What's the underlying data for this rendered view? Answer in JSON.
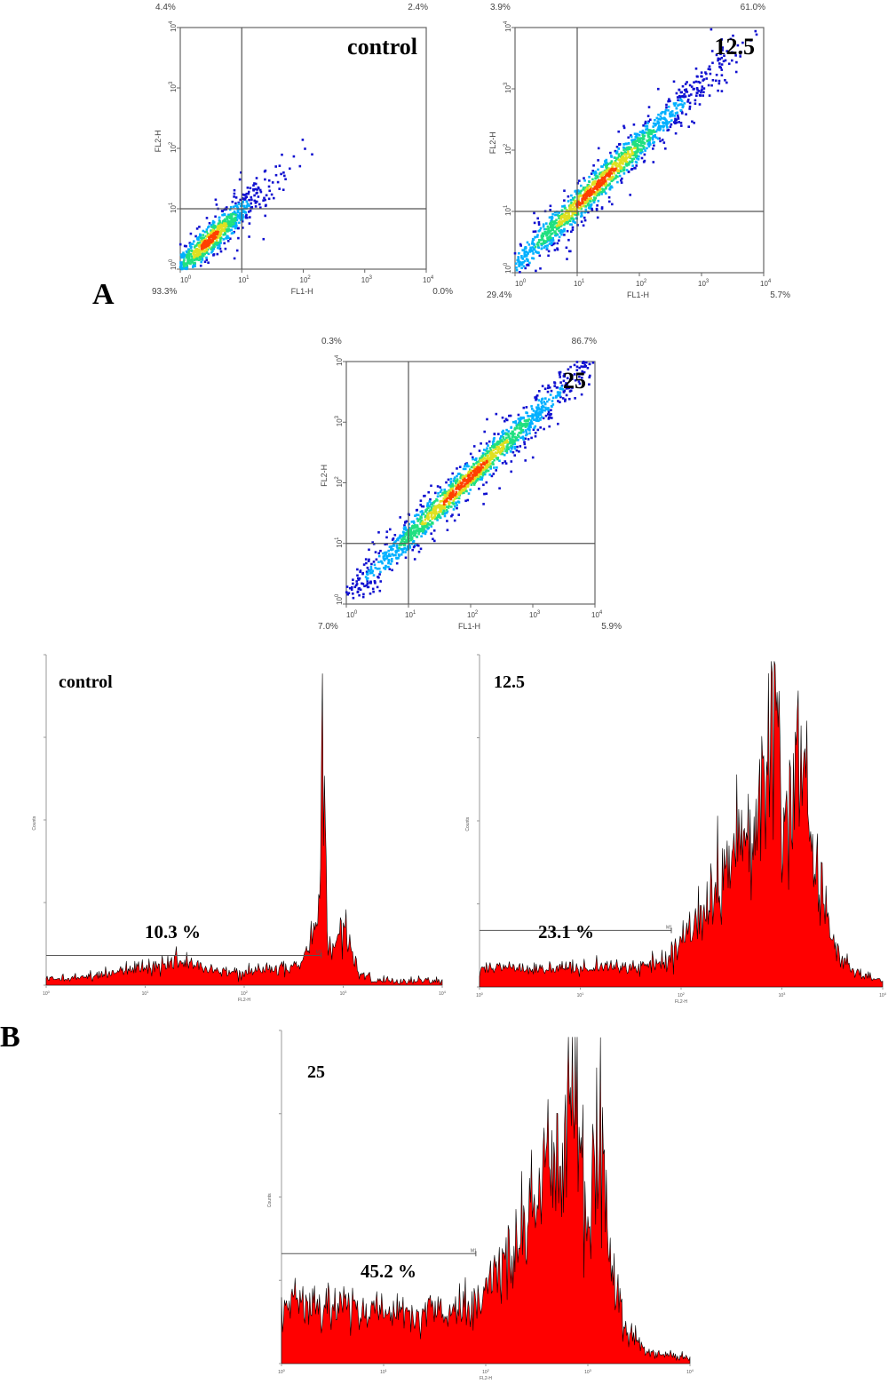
{
  "panels": {
    "A": "A",
    "B": "B"
  },
  "colors": {
    "histogram_fill": "#ff0000",
    "histogram_edge": "#000000",
    "density": [
      "#1010d0",
      "#00b0ff",
      "#20e080",
      "#e0e020",
      "#ff4000"
    ]
  },
  "chart_data": [
    {
      "type": "scatter",
      "title": "control",
      "xlabel": "FL1-H",
      "ylabel": "FL2-H",
      "scale": "log",
      "xlim": [
        1,
        10000
      ],
      "ylim": [
        1,
        10000
      ],
      "tick_exponents": [
        "0",
        "1",
        "2",
        "3",
        "4"
      ],
      "gate": {
        "x": 10,
        "y": 10
      },
      "quadrant_percentages": {
        "upper_left": "4.4%",
        "upper_right": "2.4%",
        "lower_left": "93.3%",
        "lower_right": "0.0%"
      },
      "population": {
        "center": [
          3,
          3
        ],
        "spread": 0.22,
        "slope": 1.0,
        "points": 900
      }
    },
    {
      "type": "scatter",
      "title": "12.5",
      "xlabel": "FL1-H",
      "ylabel": "FL2-H",
      "scale": "log",
      "xlim": [
        1,
        10000
      ],
      "ylim": [
        1,
        10000
      ],
      "tick_exponents": [
        "0",
        "1",
        "2",
        "3",
        "4"
      ],
      "gate": {
        "x": 10,
        "y": 10
      },
      "quadrant_percentages": {
        "upper_left": "3.9%",
        "upper_right": "61.0%",
        "lower_left": "29.4%",
        "lower_right": "5.7%"
      },
      "population": {
        "center": [
          20,
          25
        ],
        "spread": 0.5,
        "slope": 1.0,
        "points": 1600
      }
    },
    {
      "type": "scatter",
      "title": "25",
      "xlabel": "FL1-H",
      "ylabel": "FL2-H",
      "scale": "log",
      "xlim": [
        1,
        10000
      ],
      "ylim": [
        1,
        10000
      ],
      "tick_exponents": [
        "0",
        "1",
        "2",
        "3",
        "4"
      ],
      "gate": {
        "x": 10,
        "y": 10
      },
      "quadrant_percentages": {
        "upper_left": "0.3%",
        "upper_right": "86.7%",
        "lower_left": "7.0%",
        "lower_right": "5.9%"
      },
      "population": {
        "center": [
          80,
          100
        ],
        "spread": 0.55,
        "slope": 1.0,
        "points": 1700
      }
    },
    {
      "type": "area",
      "title": "control",
      "xlabel": "FL2-H",
      "ylabel": "Counts",
      "scale": "log",
      "xlim": [
        1,
        10000
      ],
      "annotation": "10.3 %",
      "marker_label": "M1",
      "marker_range": [
        1,
        600
      ],
      "marker_level": 0.09,
      "tick_exponents": [
        "0",
        "1",
        "2",
        "3",
        "4"
      ],
      "x": [
        1,
        3,
        10,
        30,
        60,
        100,
        200,
        400,
        560,
        620,
        700,
        820,
        1000,
        1400,
        2000,
        5000,
        10000
      ],
      "values": [
        0.01,
        0.02,
        0.05,
        0.06,
        0.03,
        0.03,
        0.04,
        0.06,
        0.2,
        0.98,
        0.12,
        0.11,
        0.2,
        0.03,
        0.005,
        0.003,
        0.003
      ]
    },
    {
      "type": "area",
      "title": "12.5",
      "xlabel": "FL2-H",
      "ylabel": "Counts",
      "scale": "log",
      "xlim": [
        1,
        10000
      ],
      "annotation": "23.1 %",
      "marker_label": "M1",
      "marker_range": [
        1,
        80
      ],
      "marker_level": 0.17,
      "tick_exponents": [
        "0",
        "1",
        "2",
        "3",
        "4"
      ],
      "x": [
        1,
        10,
        40,
        80,
        150,
        300,
        500,
        700,
        850,
        1000,
        1200,
        1600,
        2000,
        3000,
        5000,
        10000
      ],
      "values": [
        0.05,
        0.05,
        0.05,
        0.08,
        0.22,
        0.38,
        0.5,
        0.62,
        0.98,
        0.52,
        0.48,
        0.76,
        0.42,
        0.15,
        0.04,
        0.01
      ]
    },
    {
      "type": "area",
      "title": "25",
      "xlabel": "FL2-H",
      "ylabel": "Counts",
      "scale": "log",
      "xlim": [
        1,
        10000
      ],
      "annotation": "45.2 %",
      "marker_label": "M1",
      "marker_range": [
        1,
        80
      ],
      "marker_level": 0.33,
      "tick_exponents": [
        "0",
        "1",
        "2",
        "3",
        "4"
      ],
      "x": [
        1,
        10,
        40,
        80,
        200,
        400,
        600,
        750,
        900,
        1000,
        1100,
        1300,
        1700,
        2500,
        4000,
        10000
      ],
      "values": [
        0.18,
        0.15,
        0.14,
        0.18,
        0.35,
        0.55,
        0.68,
        0.98,
        0.52,
        0.46,
        0.5,
        0.72,
        0.28,
        0.08,
        0.02,
        0.01
      ]
    }
  ]
}
